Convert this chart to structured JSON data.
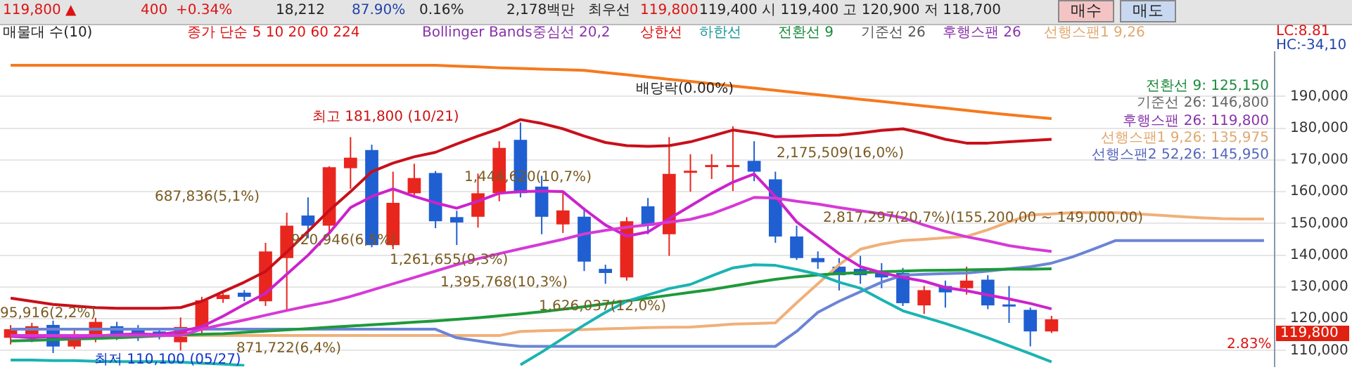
{
  "chart_data": {
    "type": "candlestick",
    "categories": [
      null,
      null,
      null,
      null,
      null,
      null,
      null,
      null,
      null,
      null,
      null,
      null,
      null,
      null,
      null,
      null,
      null,
      null,
      null,
      null,
      null,
      null,
      null,
      null,
      null,
      null,
      null,
      null,
      null,
      null,
      null,
      null,
      null,
      null,
      null,
      null,
      null,
      null,
      null,
      null,
      null,
      null,
      null,
      null,
      null,
      null,
      null,
      null,
      null,
      null,
      null,
      null,
      null,
      null,
      null,
      null,
      null,
      null,
      null,
      null
    ],
    "ohlc": [
      [
        114000,
        118000,
        111900,
        116700
      ],
      [
        114000,
        118700,
        112600,
        117650
      ],
      [
        118050,
        119400,
        109200,
        111250
      ],
      [
        111250,
        117000,
        110500,
        114400
      ],
      [
        114000,
        120300,
        112600,
        119000
      ],
      [
        117650,
        119000,
        113300,
        114650
      ],
      [
        116700,
        118000,
        113000,
        115300
      ],
      [
        116000,
        117000,
        113500,
        114600
      ],
      [
        112600,
        120400,
        110000,
        117400
      ],
      [
        116700,
        126900,
        115000,
        125800
      ],
      [
        126200,
        128000,
        125000,
        127500
      ],
      [
        128200,
        129000,
        125500,
        126900
      ],
      [
        125500,
        143900,
        124000,
        141200
      ],
      [
        139100,
        153400,
        122800,
        149300
      ],
      [
        152500,
        158200,
        145300,
        149300
      ],
      [
        149300,
        168000,
        146600,
        167700
      ],
      [
        167400,
        177200,
        160900,
        170700
      ],
      [
        173100,
        174800,
        142500,
        143200
      ],
      [
        143200,
        166300,
        141900,
        156500
      ],
      [
        159500,
        168800,
        158200,
        164300
      ],
      [
        165900,
        166500,
        148500,
        150700
      ],
      [
        152000,
        154000,
        143200,
        150300
      ],
      [
        152100,
        165700,
        148700,
        159500
      ],
      [
        159500,
        175900,
        157000,
        173800
      ],
      [
        176300,
        181800,
        158200,
        159500
      ],
      [
        161600,
        165000,
        146600,
        152100
      ],
      [
        149700,
        160000,
        147000,
        154100
      ],
      [
        152100,
        155000,
        135000,
        138000
      ],
      [
        135700,
        137000,
        131000,
        134400
      ],
      [
        133000,
        152000,
        132000,
        150700
      ],
      [
        155400,
        158000,
        146600,
        149300
      ],
      [
        146600,
        177200,
        139800,
        165600
      ],
      [
        166000,
        171800,
        160000,
        166600
      ],
      [
        168000,
        171800,
        164000,
        168400
      ],
      [
        168000,
        180600,
        160200,
        168400
      ],
      [
        169700,
        175900,
        163300,
        166300
      ],
      [
        163900,
        166300,
        143900,
        145900
      ],
      [
        145900,
        149300,
        138500,
        139100
      ],
      [
        139100,
        141200,
        135700,
        137800
      ],
      [
        136400,
        139100,
        128900,
        133700
      ],
      [
        135700,
        139800,
        131000,
        133700
      ],
      [
        135100,
        137500,
        129600,
        133000
      ],
      [
        134400,
        136000,
        124000,
        124900
      ],
      [
        124200,
        130300,
        121500,
        129000
      ],
      [
        130300,
        132000,
        123500,
        128300
      ],
      [
        129600,
        136400,
        127600,
        132000
      ],
      [
        132300,
        133700,
        123000,
        124200
      ],
      [
        124500,
        130300,
        118700,
        123900
      ],
      [
        122800,
        123500,
        111300,
        116000
      ],
      [
        116000,
        120900,
        115500,
        119800
      ],
      null,
      null,
      null,
      null,
      null,
      null,
      null,
      null,
      null,
      null
    ],
    "colors": [
      "#e8261e",
      "#e8261e",
      "#1f5fd1",
      "#e8261e",
      "#e8261e",
      "#1f5fd1",
      "#1f5fd1",
      "#1f5fd1",
      "#e8261e",
      "#e8261e",
      "#e8261e",
      "#1f5fd1",
      "#e8261e",
      "#e8261e",
      "#1f5fd1",
      "#e8261e",
      "#e8261e",
      "#1f5fd1",
      "#e8261e",
      "#e8261e",
      "#1f5fd1",
      "#1f5fd1",
      "#e8261e",
      "#e8261e",
      "#1f5fd1",
      "#1f5fd1",
      "#e8261e",
      "#1f5fd1",
      "#1f5fd1",
      "#e8261e",
      "#1f5fd1",
      "#e8261e",
      "#e8261e",
      "#e8261e",
      "#e8261e",
      "#1f5fd1",
      "#1f5fd1",
      "#1f5fd1",
      "#1f5fd1",
      "#1f5fd1",
      "#1f5fd1",
      "#1f5fd1",
      "#1f5fd1",
      "#e8261e",
      "#1f5fd1",
      "#e8261e",
      "#1f5fd1",
      "#1f5fd1",
      "#1f5fd1",
      "#e8261e",
      null,
      null,
      null,
      null,
      null,
      null,
      null,
      null,
      null,
      null
    ],
    "series": [
      {
        "type": "line",
        "color": "#f57a1e",
        "values": [
          199800,
          199800,
          199800,
          199800,
          199800,
          199800,
          199800,
          199800,
          199800,
          199800,
          199800,
          199800,
          199800,
          199800,
          199800,
          199800,
          199800,
          199800,
          199800,
          199800,
          199800,
          199500,
          199300,
          199000,
          198800,
          198600,
          198400,
          198200,
          197500,
          196800,
          196100,
          195400,
          194700,
          194000,
          193300,
          192600,
          191900,
          191200,
          190500,
          189800,
          189100,
          188400,
          187700,
          187000,
          186300,
          185600,
          184900,
          184200,
          183600,
          183000,
          null,
          null,
          null,
          null,
          null,
          null,
          null,
          null,
          null,
          null
        ]
      },
      {
        "type": "line",
        "color": "#c8101a",
        "values": [
          126500,
          125500,
          124500,
          124000,
          123500,
          123300,
          123300,
          123300,
          123500,
          125500,
          128500,
          131500,
          134900,
          141000,
          147500,
          154100,
          160000,
          166300,
          169000,
          171000,
          172400,
          175000,
          177500,
          179800,
          182700,
          181500,
          179800,
          177500,
          175500,
          174500,
          174300,
          174500,
          175700,
          177500,
          179400,
          178500,
          177300,
          177500,
          177700,
          177800,
          178500,
          179300,
          179800,
          178300,
          176500,
          175300,
          175300,
          175700,
          176100,
          176500,
          null,
          null,
          null,
          null,
          null,
          null,
          null,
          null,
          null,
          null
        ]
      },
      {
        "type": "line",
        "color": "#1bb3b3",
        "values": [
          107000,
          107000,
          106800,
          106800,
          106600,
          106500,
          106500,
          106500,
          106300,
          106000,
          105700,
          105300,
          null,
          null,
          null,
          null,
          null,
          null,
          null,
          null,
          null,
          null,
          null,
          null,
          105500,
          109500,
          113800,
          118000,
          122000,
          125500,
          127500,
          129500,
          130800,
          133500,
          136000,
          137000,
          136800,
          135500,
          134000,
          131500,
          129600,
          126000,
          122500,
          120500,
          118500,
          116300,
          114000,
          111500,
          109000,
          106400,
          null,
          null,
          null,
          null,
          null,
          null,
          null,
          null,
          null,
          null
        ]
      },
      {
        "type": "line",
        "color": "#d63ad6",
        "values": [
          114700,
          114700,
          114700,
          114700,
          114700,
          114700,
          114700,
          114700,
          114700,
          116700,
          118200,
          119600,
          121100,
          122600,
          124000,
          125300,
          127000,
          129000,
          131000,
          133000,
          135000,
          137000,
          138900,
          140500,
          142000,
          143500,
          145000,
          146700,
          147800,
          148800,
          149600,
          150400,
          151300,
          153000,
          155500,
          158200,
          158000,
          157000,
          156100,
          155000,
          154000,
          153000,
          151800,
          149500,
          147500,
          145800,
          144500,
          143000,
          142000,
          141200,
          null,
          null,
          null,
          null,
          null,
          null,
          null,
          null,
          null,
          null
        ]
      },
      {
        "type": "line",
        "color": "#cc22cc",
        "values": [
          114500,
          114000,
          114500,
          114000,
          114500,
          115000,
          115200,
          115000,
          116000,
          117500,
          120800,
          124500,
          128000,
          134000,
          140000,
          147000,
          155000,
          158500,
          160900,
          158500,
          156500,
          154800,
          157000,
          159500,
          160000,
          160200,
          160000,
          154500,
          149500,
          146000,
          147300,
          151500,
          155500,
          159500,
          163000,
          165600,
          158500,
          150500,
          145500,
          140500,
          136400,
          134500,
          133000,
          131800,
          129800,
          128800,
          127500,
          126200,
          124800,
          123100,
          null,
          null,
          null,
          null,
          null,
          null,
          null,
          null,
          null,
          null
        ]
      },
      {
        "type": "line",
        "color": "#1d9a3a",
        "values": [
          113000,
          113200,
          113400,
          113600,
          113800,
          114000,
          114300,
          114600,
          114900,
          115100,
          115300,
          115700,
          116100,
          116500,
          116900,
          117300,
          117700,
          118100,
          118500,
          118900,
          119300,
          119800,
          120300,
          120900,
          121500,
          122200,
          123000,
          123800,
          124700,
          125600,
          126500,
          127400,
          128300,
          129200,
          130300,
          131400,
          132400,
          133200,
          133800,
          134200,
          134500,
          134800,
          135000,
          135200,
          135300,
          135400,
          135500,
          135600,
          135600,
          135700,
          null,
          null,
          null,
          null,
          null,
          null,
          null,
          null,
          null,
          null
        ]
      },
      {
        "type": "line",
        "color": "#6b84d6",
        "values": [
          116700,
          116700,
          116700,
          116700,
          116700,
          116700,
          116700,
          116700,
          116700,
          116700,
          116700,
          116700,
          116700,
          116700,
          116700,
          116700,
          116700,
          116700,
          116700,
          116700,
          116700,
          114000,
          113000,
          112000,
          111300,
          111300,
          111300,
          111300,
          111300,
          111300,
          111300,
          111300,
          111300,
          111300,
          111300,
          111300,
          111300,
          116000,
          122000,
          125500,
          128500,
          131500,
          133700,
          134000,
          134200,
          134400,
          135000,
          135700,
          136400,
          137500,
          139500,
          142000,
          144600,
          144600,
          144600,
          144600,
          144600,
          144600,
          144600,
          144600
        ]
      },
      {
        "type": "line",
        "color": "#f0b07a",
        "values": [
          114700,
          114700,
          114700,
          114700,
          114700,
          114700,
          114700,
          114700,
          114700,
          114700,
          114700,
          114700,
          114700,
          114700,
          114700,
          114700,
          114700,
          114700,
          114700,
          114700,
          114700,
          114700,
          114700,
          114700,
          116000,
          116200,
          116400,
          116600,
          116800,
          117000,
          117200,
          117300,
          117400,
          117800,
          118300,
          118500,
          118700,
          125000,
          131000,
          137000,
          141900,
          143500,
          144600,
          145000,
          145500,
          145900,
          148000,
          150500,
          152700,
          153000,
          153400,
          153400,
          153400,
          153000,
          152600,
          152200,
          151800,
          151500,
          151400,
          151400
        ]
      }
    ],
    "ylim": [
      105000,
      204000
    ],
    "yticks": [
      {
        "value": 110000,
        "label": "110,000"
      },
      {
        "value": 120000,
        "label": "120,000"
      },
      {
        "value": 130000,
        "label": "130,000"
      },
      {
        "value": 140000,
        "label": "140,000"
      },
      {
        "value": 150000,
        "label": "150,000"
      },
      {
        "value": 160000,
        "label": "160,000"
      },
      {
        "value": 170000,
        "label": "170,000"
      },
      {
        "value": 180000,
        "label": "180,000"
      },
      {
        "value": 190000,
        "label": "190,000"
      }
    ],
    "grid": "y",
    "tick_labels": "y",
    "marker": "none",
    "line_style": "solid",
    "annotations": [
      "119,800 ▲",
      "400",
      "+0.34%",
      "18,212",
      "87.90%",
      "0.16%",
      "2,178백만",
      "최우선",
      "119,800",
      "119,400 시 119,400 고 120,900 저 118,700",
      "매수",
      "매도",
      "매물대 수(10)",
      "종가 단순 5 10 20 60 224",
      "Bollinger Bands중심선 20,2",
      "상한선",
      "하한선",
      "전환선 9",
      "기준선 26",
      "후행스팬 26",
      "선행스팬1 9,26",
      "LC:8.81",
      "HC:-34,10",
      "전환선 9: 125,150",
      "기준선 26: 146,800",
      "후행스팬 26: 119,800",
      "선행스팬1 9,26: 135,975",
      "선행스팬2 52,26: 145,950",
      "최고 181,800 (10/21)",
      "배당락(0.00%)",
      "687,836(5,1%)",
      "1,444,620(10,7%)",
      "920,946(6,5%)",
      "1,261,655(9,3%)",
      "1,395,768(10,3%)",
      "1,626,037(12,0%)",
      "2,175,509(16,0%)",
      "2,817,297(20,7%)(155,200,00 ~ 149,000,00)",
      "95,916(2,2%)",
      "871,722(6,4%)",
      "최저 110,100 (05/27)",
      "119,800",
      "2.83%"
    ]
  }
}
